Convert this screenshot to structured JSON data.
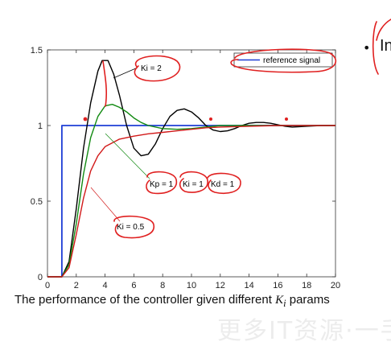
{
  "caption": {
    "text": "The performance of the controller given different ",
    "math": "K",
    "math_sub": "i",
    "suffix": " params"
  },
  "side_text": "In",
  "watermark": "更多IT资源·一手",
  "chart_data": {
    "type": "line",
    "xlim": [
      0,
      20
    ],
    "ylim": [
      0,
      1.5
    ],
    "x_ticks": [
      0,
      2,
      4,
      6,
      8,
      10,
      12,
      14,
      16,
      18,
      20
    ],
    "y_ticks": [
      0,
      0.5,
      1,
      1.5
    ],
    "x_tick_labels": [
      "0",
      "2",
      "4",
      "6",
      "8",
      "10",
      "12",
      "14",
      "16",
      "18",
      "20"
    ],
    "y_tick_labels": [
      "0",
      "0.5",
      "1",
      "1.5"
    ],
    "legend": {
      "label": "reference signal",
      "position": "top-right"
    },
    "colors": {
      "reference": "#1f3fd6",
      "ki2": "#000000",
      "ki1": "#128a12",
      "ki05": "#d21a1a",
      "ink": "#e02020"
    },
    "series": [
      {
        "key": "reference",
        "x": [
          0,
          1,
          1,
          20
        ],
        "y": [
          0,
          0,
          1,
          1
        ]
      },
      {
        "key": "ki2",
        "x": [
          0,
          1,
          1.5,
          2,
          2.5,
          3,
          3.5,
          3.8,
          4.2,
          4.6,
          5,
          5.5,
          6,
          6.5,
          7,
          7.5,
          8,
          8.5,
          9,
          9.5,
          10,
          10.5,
          11,
          11.5,
          12,
          12.5,
          13,
          13.5,
          14,
          14.5,
          15,
          15.5,
          16,
          16.5,
          17,
          18,
          19,
          20
        ],
        "y": [
          0,
          0,
          0.1,
          0.45,
          0.85,
          1.15,
          1.36,
          1.43,
          1.43,
          1.34,
          1.2,
          1.0,
          0.85,
          0.8,
          0.81,
          0.88,
          0.98,
          1.06,
          1.1,
          1.11,
          1.09,
          1.05,
          1.0,
          0.97,
          0.96,
          0.965,
          0.98,
          1.0,
          1.015,
          1.02,
          1.02,
          1.015,
          1.005,
          0.995,
          0.99,
          0.995,
          1.0,
          1.0
        ]
      },
      {
        "key": "ki1",
        "x": [
          0,
          1,
          1.5,
          2,
          2.5,
          3,
          3.5,
          4,
          4.5,
          5,
          5.5,
          6,
          6.5,
          7,
          8,
          9,
          10,
          11,
          12,
          14,
          16,
          18,
          20
        ],
        "y": [
          0,
          0,
          0.08,
          0.35,
          0.68,
          0.92,
          1.06,
          1.13,
          1.14,
          1.12,
          1.09,
          1.05,
          1.02,
          1.0,
          0.98,
          0.975,
          0.98,
          0.99,
          1.0,
          1.0,
          1.0,
          1.0,
          1.0
        ]
      },
      {
        "key": "ki05",
        "x": [
          0,
          1,
          1.5,
          2,
          2.5,
          3,
          3.5,
          4,
          5,
          6,
          7,
          8,
          9,
          10,
          11,
          12,
          14,
          16,
          18,
          20
        ],
        "y": [
          0,
          0,
          0.06,
          0.28,
          0.52,
          0.7,
          0.8,
          0.86,
          0.91,
          0.93,
          0.945,
          0.955,
          0.965,
          0.975,
          0.985,
          0.99,
          0.995,
          1.0,
          1.0,
          1.0
        ]
      }
    ],
    "annotations": [
      {
        "key": "ki2",
        "text": "Ki = 2"
      },
      {
        "key": "kp1",
        "text": "Kp = 1"
      },
      {
        "key": "ki1",
        "text": "Ki = 1"
      },
      {
        "key": "kd1",
        "text": "Kd = 1"
      },
      {
        "key": "ki05",
        "text": "Ki = 0.5"
      }
    ]
  }
}
